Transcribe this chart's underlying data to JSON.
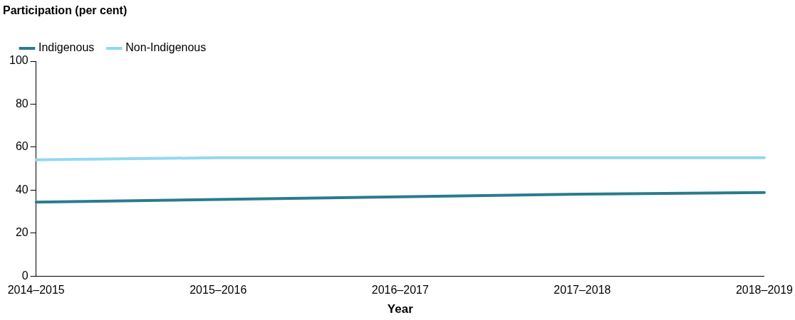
{
  "chart_data": {
    "type": "line",
    "ylabel": "Participation (per cent)",
    "xlabel": "Year",
    "categories": [
      "2014–2015",
      "2015–2016",
      "2016–2017",
      "2017–2018",
      "2018–2019"
    ],
    "series": [
      {
        "name": "Indigenous",
        "color": "#2a7b8e",
        "values": [
          34.4,
          35.7,
          36.9,
          38.2,
          38.9
        ]
      },
      {
        "name": "Non-Indigenous",
        "color": "#93d8f0",
        "values": [
          54.1,
          55.1,
          55.1,
          55.1,
          55.1
        ]
      }
    ],
    "ylim": [
      0,
      100
    ],
    "yticks": [
      0,
      20,
      40,
      60,
      80,
      100
    ],
    "grid": false,
    "legend": "top left",
    "marker": "none",
    "line_style": "solid"
  }
}
